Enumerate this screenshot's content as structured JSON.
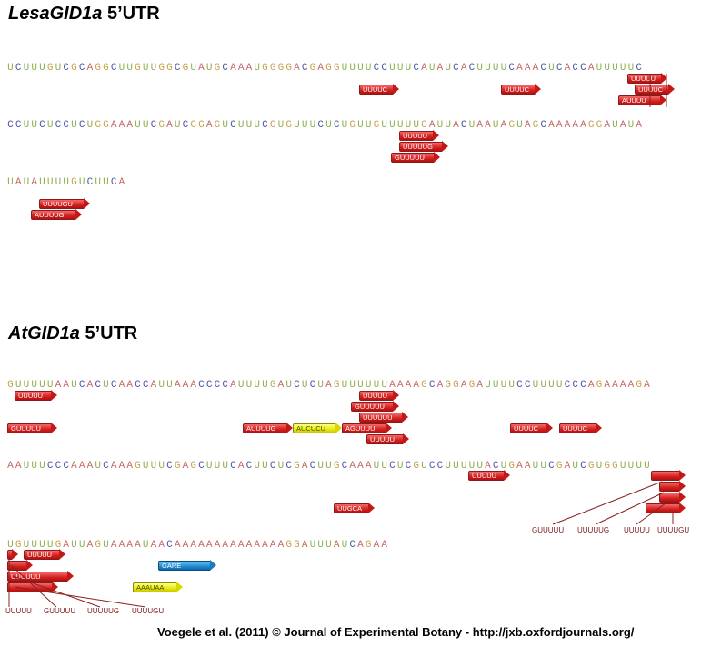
{
  "titles": {
    "lesa_name": "LesaGID1a",
    "lesa_suffix": " 5’UTR",
    "at_name": "AtGID1a",
    "at_suffix": " 5’UTR"
  },
  "sequences": {
    "lesa_line1": "UCUUUGUCGCAGGCUUGUUGGCGUAUGCAAAUGGGGACGAGGUUUUCCUUUCAUAUCACUUUUCAAACUCACCAUUUUUC",
    "lesa_line2": "CCUUCUCCUCUGGAAAUUCGAUCGGAGUCUUUCGUGUUUCUCUGUUGUUUUUGAUUACUAAUAGUAGCAAAAAGGAUAUA",
    "lesa_line3": "UAUAUUUUGUCUUCA",
    "at_line1": "GUUUUUAAUCACUCAACCAUUAAACCCCAUUUUGAUCUCUAGUUUUUUAAAAGCAGGAGAUUUUCCUUUUCCCAGAAAAGA",
    "at_line2": "AAUUUCCCAAAUCAAAGUUUCGAGCUUUCACUUCUCGACUUGCAAAUUCUCGUCCUUUUUACUGAAUUCGAUCGUGGUUUU",
    "at_line3": "UGUUUUGAUUAGUAAAAUAACAAAAAAAAAAAAAAGGAUUUAUCAGAA"
  },
  "features": {
    "lesa": [
      {
        "label": "UUUUC",
        "color": "red"
      },
      {
        "label": "UUUUC",
        "color": "red"
      },
      {
        "label": "UUUUU",
        "color": "red"
      },
      {
        "label": "UUUUC",
        "color": "red"
      },
      {
        "label": "AUUUU",
        "color": "red"
      },
      {
        "label": "UUUUU",
        "color": "red"
      },
      {
        "label": "UUUUUG",
        "color": "red"
      },
      {
        "label": "GUUUUU",
        "color": "red"
      },
      {
        "label": "UUUUGU",
        "color": "red"
      },
      {
        "label": "AUUUUG",
        "color": "red"
      }
    ],
    "at": [
      {
        "label": "UUUUU",
        "color": "red"
      },
      {
        "label": "UUUUU",
        "color": "red"
      },
      {
        "label": "GUUUUU",
        "color": "red"
      },
      {
        "label": "UUUUUU",
        "color": "red"
      },
      {
        "label": "GUUUUU",
        "color": "red"
      },
      {
        "label": "AUUUUG",
        "color": "red"
      },
      {
        "label": "AUCUCU",
        "color": "yellow"
      },
      {
        "label": "AGUUUU",
        "color": "red"
      },
      {
        "label": "UUUUC",
        "color": "red"
      },
      {
        "label": "UUUUC",
        "color": "red"
      },
      {
        "label": "UUUUU",
        "color": "red"
      },
      {
        "label": "UUUUU",
        "color": "red"
      },
      {
        "label": "UUGCA",
        "color": "red"
      },
      {
        "label": "UUUUU",
        "color": "red"
      },
      {
        "label": "UUUUUU",
        "color": "red"
      },
      {
        "label": "GARE",
        "color": "blue"
      },
      {
        "label": "AAAUAA",
        "color": "yellow"
      }
    ]
  },
  "cluster_labels": {
    "at_line2": [
      "GUUUUU",
      "UUUUUG",
      "UUUUU",
      "UUUUGU"
    ],
    "at_line3": [
      "UUUUU",
      "GUUUUU",
      "UUUUUG",
      "UUUUGU"
    ]
  },
  "colors": {
    "U": "#8fae4c",
    "C": "#4f57a8",
    "A": "#c76a6a",
    "G": "#c7a24a",
    "red_feature": "#d42020",
    "yellow_feature": "#e8ea10",
    "blue_feature": "#1f8ad0"
  },
  "footer": "Voegele et al. (2011) © Journal of Experimental Botany - http://jxb.oxfordjournals.org/"
}
